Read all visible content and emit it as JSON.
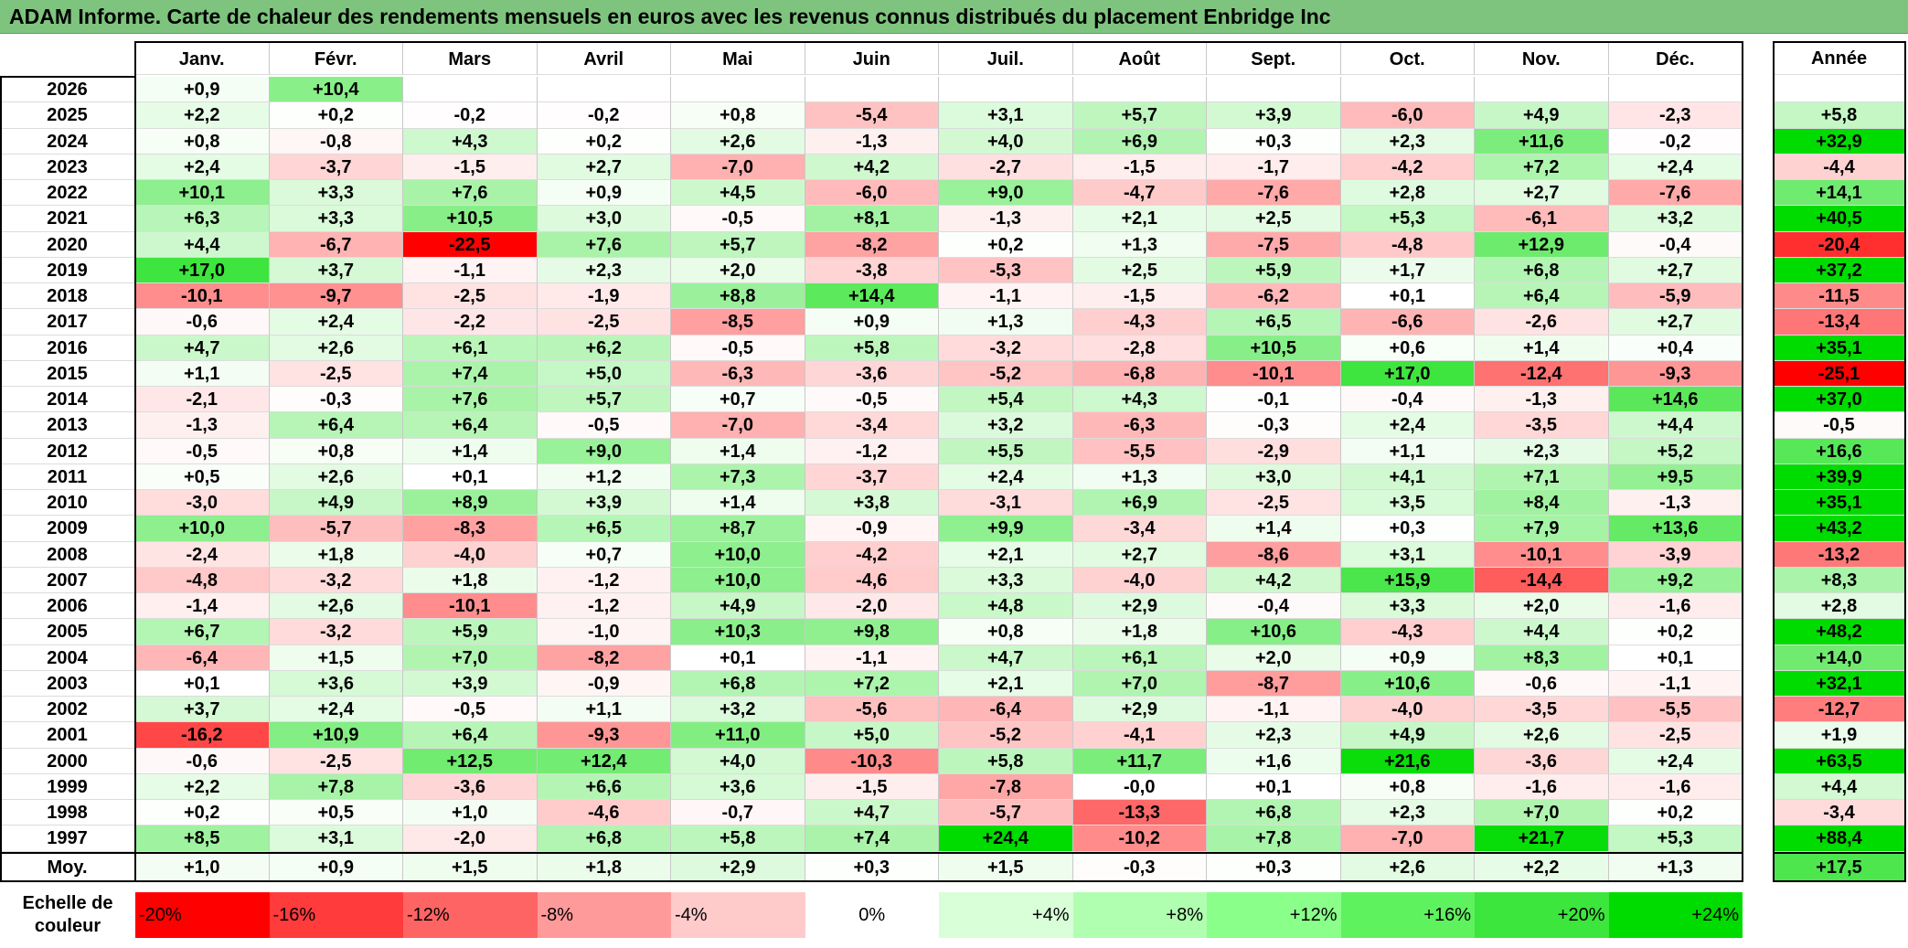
{
  "title": "ADAM Informe. Carte de chaleur des rendements mensuels en euros avec les revenus connus distribués du placement Enbridge Inc",
  "chart_data": {
    "type": "heatmap",
    "columns": [
      "Janv.",
      "Févr.",
      "Mars",
      "Avril",
      "Mai",
      "Juin",
      "Juil.",
      "Août",
      "Sept.",
      "Oct.",
      "Nov.",
      "Déc."
    ],
    "year_column_label": "Année",
    "average_row_label": "Moy.",
    "rows": [
      {
        "year": "2026",
        "months": [
          "+0,9",
          "+10,4",
          "",
          "",
          "",
          "",
          "",
          "",
          "",
          "",
          "",
          ""
        ],
        "annual": ""
      },
      {
        "year": "2025",
        "months": [
          "+2,2",
          "+0,2",
          "-0,2",
          "-0,2",
          "+0,8",
          "-5,4",
          "+3,1",
          "+5,7",
          "+3,9",
          "-6,0",
          "+4,9",
          "-2,3"
        ],
        "annual": "+5,8"
      },
      {
        "year": "2024",
        "months": [
          "+0,8",
          "-0,8",
          "+4,3",
          "+0,2",
          "+2,6",
          "-1,3",
          "+4,0",
          "+6,9",
          "+0,3",
          "+2,3",
          "+11,6",
          "-0,2"
        ],
        "annual": "+32,9"
      },
      {
        "year": "2023",
        "months": [
          "+2,4",
          "-3,7",
          "-1,5",
          "+2,7",
          "-7,0",
          "+4,2",
          "-2,7",
          "-1,5",
          "-1,7",
          "-4,2",
          "+7,2",
          "+2,4"
        ],
        "annual": "-4,4"
      },
      {
        "year": "2022",
        "months": [
          "+10,1",
          "+3,3",
          "+7,6",
          "+0,9",
          "+4,5",
          "-6,0",
          "+9,0",
          "-4,7",
          "-7,6",
          "+2,8",
          "+2,7",
          "-7,6"
        ],
        "annual": "+14,1"
      },
      {
        "year": "2021",
        "months": [
          "+6,3",
          "+3,3",
          "+10,5",
          "+3,0",
          "-0,5",
          "+8,1",
          "-1,3",
          "+2,1",
          "+2,5",
          "+5,3",
          "-6,1",
          "+3,2"
        ],
        "annual": "+40,5"
      },
      {
        "year": "2020",
        "months": [
          "+4,4",
          "-6,7",
          "-22,5",
          "+7,6",
          "+5,7",
          "-8,2",
          "+0,2",
          "+1,3",
          "-7,5",
          "-4,8",
          "+12,9",
          "-0,4"
        ],
        "annual": "-20,4"
      },
      {
        "year": "2019",
        "months": [
          "+17,0",
          "+3,7",
          "-1,1",
          "+2,3",
          "+2,0",
          "-3,8",
          "-5,3",
          "+2,5",
          "+5,9",
          "+1,7",
          "+6,8",
          "+2,7"
        ],
        "annual": "+37,2"
      },
      {
        "year": "2018",
        "months": [
          "-10,1",
          "-9,7",
          "-2,5",
          "-1,9",
          "+8,8",
          "+14,4",
          "-1,1",
          "-1,5",
          "-6,2",
          "+0,1",
          "+6,4",
          "-5,9"
        ],
        "annual": "-11,5"
      },
      {
        "year": "2017",
        "months": [
          "-0,6",
          "+2,4",
          "-2,2",
          "-2,5",
          "-8,5",
          "+0,9",
          "+1,3",
          "-4,3",
          "+6,5",
          "-6,6",
          "-2,6",
          "+2,7"
        ],
        "annual": "-13,4"
      },
      {
        "year": "2016",
        "months": [
          "+4,7",
          "+2,6",
          "+6,1",
          "+6,2",
          "-0,5",
          "+5,8",
          "-3,2",
          "-2,8",
          "+10,5",
          "+0,6",
          "+1,4",
          "+0,4"
        ],
        "annual": "+35,1"
      },
      {
        "year": "2015",
        "months": [
          "+1,1",
          "-2,5",
          "+7,4",
          "+5,0",
          "-6,3",
          "-3,6",
          "-5,2",
          "-6,8",
          "-10,1",
          "+17,0",
          "-12,4",
          "-9,3"
        ],
        "annual": "-25,1"
      },
      {
        "year": "2014",
        "months": [
          "-2,1",
          "-0,3",
          "+7,6",
          "+5,7",
          "+0,7",
          "-0,5",
          "+5,4",
          "+4,3",
          "-0,1",
          "-0,4",
          "-1,3",
          "+14,6"
        ],
        "annual": "+37,0"
      },
      {
        "year": "2013",
        "months": [
          "-1,3",
          "+6,4",
          "+6,4",
          "-0,5",
          "-7,0",
          "-3,4",
          "+3,2",
          "-6,3",
          "-0,3",
          "+2,4",
          "-3,5",
          "+4,4"
        ],
        "annual": "-0,5"
      },
      {
        "year": "2012",
        "months": [
          "-0,5",
          "+0,8",
          "+1,4",
          "+9,0",
          "+1,4",
          "-1,2",
          "+5,5",
          "-5,5",
          "-2,9",
          "+1,1",
          "+2,3",
          "+5,2"
        ],
        "annual": "+16,6"
      },
      {
        "year": "2011",
        "months": [
          "+0,5",
          "+2,6",
          "+0,1",
          "+1,2",
          "+7,3",
          "-3,7",
          "+2,4",
          "+1,3",
          "+3,0",
          "+4,1",
          "+7,1",
          "+9,5"
        ],
        "annual": "+39,9"
      },
      {
        "year": "2010",
        "months": [
          "-3,0",
          "+4,9",
          "+8,9",
          "+3,9",
          "+1,4",
          "+3,8",
          "-3,1",
          "+6,9",
          "-2,5",
          "+3,5",
          "+8,4",
          "-1,3"
        ],
        "annual": "+35,1"
      },
      {
        "year": "2009",
        "months": [
          "+10,0",
          "-5,7",
          "-8,3",
          "+6,5",
          "+8,7",
          "-0,9",
          "+9,9",
          "-3,4",
          "+1,4",
          "+0,3",
          "+7,9",
          "+13,6"
        ],
        "annual": "+43,2"
      },
      {
        "year": "2008",
        "months": [
          "-2,4",
          "+1,8",
          "-4,0",
          "+0,7",
          "+10,0",
          "-4,2",
          "+2,1",
          "+2,7",
          "-8,6",
          "+3,1",
          "-10,1",
          "-3,9"
        ],
        "annual": "-13,2"
      },
      {
        "year": "2007",
        "months": [
          "-4,8",
          "-3,2",
          "+1,8",
          "-1,2",
          "+10,0",
          "-4,6",
          "+3,3",
          "-4,0",
          "+4,2",
          "+15,9",
          "-14,4",
          "+9,2"
        ],
        "annual": "+8,3"
      },
      {
        "year": "2006",
        "months": [
          "-1,4",
          "+2,6",
          "-10,1",
          "-1,2",
          "+4,9",
          "-2,0",
          "+4,8",
          "+2,9",
          "-0,4",
          "+3,3",
          "+2,0",
          "-1,6"
        ],
        "annual": "+2,8"
      },
      {
        "year": "2005",
        "months": [
          "+6,7",
          "-3,2",
          "+5,9",
          "-1,0",
          "+10,3",
          "+9,8",
          "+0,8",
          "+1,8",
          "+10,6",
          "-4,3",
          "+4,4",
          "+0,2"
        ],
        "annual": "+48,2"
      },
      {
        "year": "2004",
        "months": [
          "-6,4",
          "+1,5",
          "+7,0",
          "-8,2",
          "+0,1",
          "-1,1",
          "+4,7",
          "+6,1",
          "+2,0",
          "+0,9",
          "+8,3",
          "+0,1"
        ],
        "annual": "+14,0"
      },
      {
        "year": "2003",
        "months": [
          "+0,1",
          "+3,6",
          "+3,9",
          "-0,9",
          "+6,8",
          "+7,2",
          "+2,1",
          "+7,0",
          "-8,7",
          "+10,6",
          "-0,6",
          "-1,1"
        ],
        "annual": "+32,1"
      },
      {
        "year": "2002",
        "months": [
          "+3,7",
          "+2,4",
          "-0,5",
          "+1,1",
          "+3,2",
          "-5,6",
          "-6,4",
          "+2,9",
          "-1,1",
          "-4,0",
          "-3,5",
          "-5,5"
        ],
        "annual": "-12,7"
      },
      {
        "year": "2001",
        "months": [
          "-16,2",
          "+10,9",
          "+6,4",
          "-9,3",
          "+11,0",
          "+5,0",
          "-5,2",
          "-4,1",
          "+2,3",
          "+4,9",
          "+2,6",
          "-2,5"
        ],
        "annual": "+1,9"
      },
      {
        "year": "2000",
        "months": [
          "-0,6",
          "-2,5",
          "+12,5",
          "+12,4",
          "+4,0",
          "-10,3",
          "+5,8",
          "+11,7",
          "+1,6",
          "+21,6",
          "-3,6",
          "+2,4"
        ],
        "annual": "+63,5"
      },
      {
        "year": "1999",
        "months": [
          "+2,2",
          "+7,8",
          "-3,6",
          "+6,6",
          "+3,6",
          "-1,5",
          "-7,8",
          "-0,0",
          "+0,1",
          "+0,8",
          "-1,6",
          "-1,6"
        ],
        "annual": "+4,4"
      },
      {
        "year": "1998",
        "months": [
          "+0,2",
          "+0,5",
          "+1,0",
          "-4,6",
          "-0,7",
          "+4,7",
          "-5,7",
          "-13,3",
          "+6,8",
          "+2,3",
          "+7,0",
          "+0,2"
        ],
        "annual": "-3,4"
      },
      {
        "year": "1997",
        "months": [
          "+8,5",
          "+3,1",
          "-2,0",
          "+6,8",
          "+5,8",
          "+7,4",
          "+24,4",
          "-10,2",
          "+7,8",
          "-7,0",
          "+21,7",
          "+5,3"
        ],
        "annual": "+88,4"
      }
    ],
    "averages": {
      "months": [
        "+1,0",
        "+0,9",
        "+1,5",
        "+1,8",
        "+2,9",
        "+0,3",
        "+1,5",
        "-0,3",
        "+0,3",
        "+2,6",
        "+2,2",
        "+1,3"
      ],
      "annual": "+17,5"
    },
    "color_scale": {
      "label": "Echelle de couleur",
      "steps": [
        {
          "label": "-20%",
          "color": "#ff0000"
        },
        {
          "label": "-16%",
          "color": "#ff3b3b"
        },
        {
          "label": "-12%",
          "color": "#ff6464"
        },
        {
          "label": "-8%",
          "color": "#ff9a9a"
        },
        {
          "label": "-4%",
          "color": "#ffcaca"
        },
        {
          "label": "0%",
          "color": "#ffffff"
        },
        {
          "label": "+4%",
          "color": "#d8ffd8"
        },
        {
          "label": "+8%",
          "color": "#b0ffb0"
        },
        {
          "label": "+12%",
          "color": "#8aff8a"
        },
        {
          "label": "+16%",
          "color": "#5ef25e"
        },
        {
          "label": "+20%",
          "color": "#3ce63c"
        },
        {
          "label": "+24%",
          "color": "#00dc00"
        }
      ]
    }
  }
}
